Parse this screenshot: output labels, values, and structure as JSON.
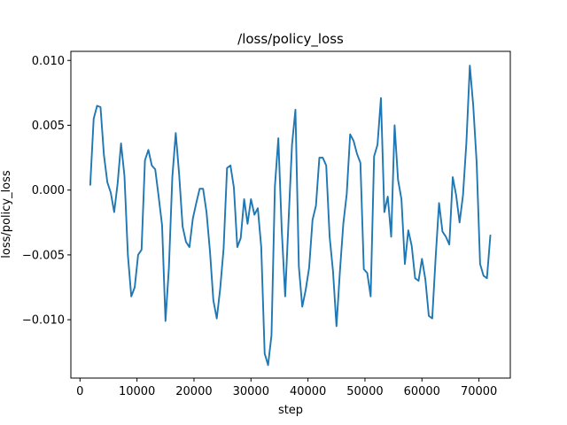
{
  "chart_data": {
    "type": "line",
    "title": "/loss/policy_loss",
    "xlabel": "step",
    "ylabel": "loss/policy_loss",
    "xlim": [
      -1600,
      75500
    ],
    "ylim": [
      -0.0145,
      0.0107
    ],
    "xticks": [
      0,
      10000,
      20000,
      30000,
      40000,
      50000,
      60000,
      70000
    ],
    "xtick_labels": [
      "0",
      "10000",
      "20000",
      "30000",
      "40000",
      "50000",
      "60000",
      "70000"
    ],
    "yticks": [
      -0.01,
      -0.005,
      0.0,
      0.005,
      0.01
    ],
    "ytick_labels": [
      "−0.010",
      "−0.005",
      "0.000",
      "0.005",
      "0.010"
    ],
    "grid": false,
    "line_color": "#1f77b4",
    "series": [
      {
        "x": [
          1800,
          2400,
          3000,
          3600,
          4200,
          4800,
          5400,
          6000,
          6600,
          7200,
          7800,
          8400,
          9000,
          9600,
          10200,
          10800,
          11400,
          12000,
          12600,
          13200,
          13800,
          14400,
          15000,
          15600,
          16200,
          16800,
          17400,
          18000,
          18600,
          19200,
          19800,
          20400,
          21000,
          21600,
          22200,
          22800,
          23400,
          24000,
          24600,
          25200,
          25800,
          26400,
          27000,
          27600,
          28200,
          28800,
          29400,
          30000,
          30600,
          31200,
          31800,
          32400,
          33000,
          33600,
          34200,
          34800,
          35400,
          36000,
          36600,
          37200,
          37800,
          38400,
          39000,
          39600,
          40200,
          40800,
          41400,
          42000,
          42600,
          43200,
          43800,
          44400,
          45000,
          45600,
          46200,
          46800,
          47400,
          48000,
          48600,
          49200,
          49800,
          50400,
          51000,
          51600,
          52200,
          52800,
          53400,
          54000,
          54600,
          55200,
          55800,
          56400,
          57000,
          57600,
          58200,
          58800,
          59400,
          60000,
          60600,
          61200,
          61800,
          62400,
          63000,
          63600,
          64200,
          64800,
          65400,
          66000,
          66600,
          67200,
          67800,
          68400,
          69000,
          69600,
          70200,
          70800,
          71400,
          72000
        ],
        "y": [
          0.0004,
          0.0055,
          0.0065,
          0.0064,
          0.0027,
          0.0006,
          -0.0002,
          -0.0017,
          0.0005,
          0.0036,
          0.0011,
          -0.005,
          -0.0082,
          -0.0075,
          -0.005,
          -0.0046,
          0.0023,
          0.0031,
          0.0019,
          0.0016,
          -0.0005,
          -0.0027,
          -0.0101,
          -0.006,
          0.001,
          0.0044,
          0.0012,
          -0.0028,
          -0.004,
          -0.0044,
          -0.0022,
          -0.001,
          0.0001,
          0.0001,
          -0.0017,
          -0.0047,
          -0.0085,
          -0.0099,
          -0.0076,
          -0.0045,
          0.0017,
          0.0019,
          0.0002,
          -0.0044,
          -0.0037,
          -0.0007,
          -0.0026,
          -0.0007,
          -0.0019,
          -0.0014,
          -0.0044,
          -0.0126,
          -0.0135,
          -0.0112,
          0.0003,
          0.004,
          -0.0031,
          -0.0082,
          -0.0023,
          0.0035,
          0.0062,
          -0.0059,
          -0.009,
          -0.0077,
          -0.006,
          -0.0023,
          -0.0012,
          0.0025,
          0.0025,
          0.0019,
          -0.0036,
          -0.0063,
          -0.0105,
          -0.0063,
          -0.0026,
          -0.0003,
          0.0043,
          0.0038,
          0.0028,
          0.0021,
          -0.0061,
          -0.0064,
          -0.0082,
          0.0026,
          0.0035,
          0.0071,
          -0.0017,
          -0.0005,
          -0.0036,
          0.005,
          0.0008,
          -0.0007,
          -0.0057,
          -0.0031,
          -0.0043,
          -0.0068,
          -0.007,
          -0.0053,
          -0.0069,
          -0.0097,
          -0.0099,
          -0.0052,
          -0.001,
          -0.0032,
          -0.0036,
          -0.0042,
          0.001,
          -0.0004,
          -0.0025,
          -0.0004,
          0.0037,
          0.0096,
          0.0065,
          0.0021,
          -0.0057,
          -0.0066,
          -0.0068,
          -0.0035
        ]
      }
    ]
  }
}
